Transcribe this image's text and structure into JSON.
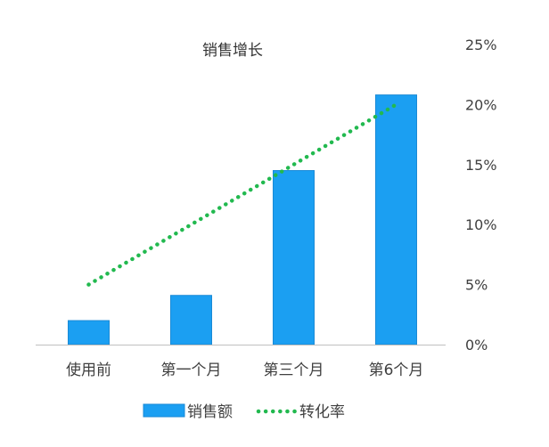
{
  "chart_data": {
    "type": "bar",
    "title": "销售增长",
    "categories": [
      "使用前",
      "第一个月",
      "第三个月",
      "第6个月"
    ],
    "series": [
      {
        "name": "销售额",
        "type": "bar",
        "axis": "none",
        "values": [
          2.0,
          4.1,
          14.5,
          20.8
        ]
      },
      {
        "name": "转化率",
        "type": "line",
        "style": "dotted",
        "axis": "right",
        "values": [
          5,
          10,
          15,
          20
        ]
      }
    ],
    "y_axis_right": {
      "ticks": [
        "0%",
        "5%",
        "10%",
        "15%",
        "20%",
        "25%"
      ],
      "range": [
        0,
        25
      ]
    },
    "grid": false,
    "legend_position": "bottom",
    "colors": {
      "bar": "#1b9ff2",
      "bar_edge": "#1a8ad6",
      "line": "#22b94f",
      "axis": "#bfbfbf"
    }
  }
}
